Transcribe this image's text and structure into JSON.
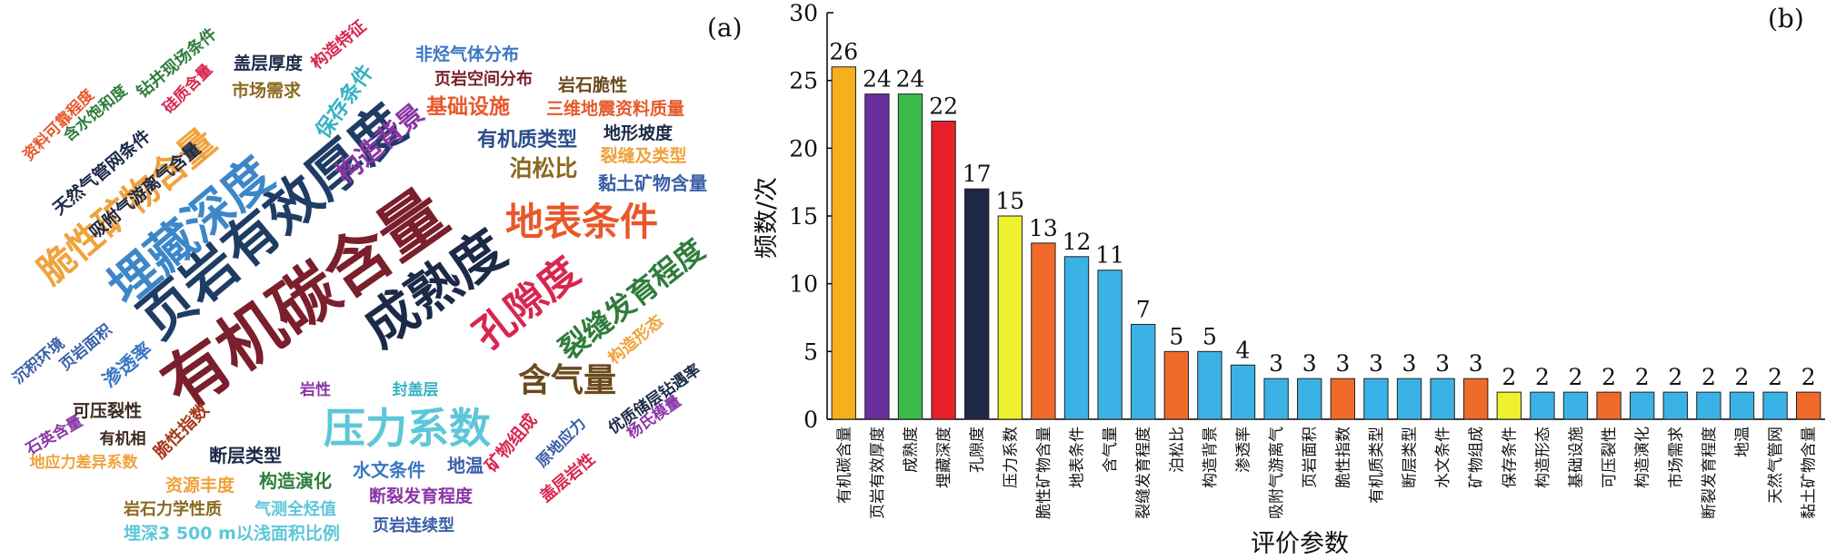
{
  "panels": {
    "a": "(a)",
    "b": "(b)"
  },
  "word_cloud": [
    {
      "text": "有机碳含量",
      "color": "#7a1f2b"
    },
    {
      "text": "页岩有效厚度",
      "color": "#1e3c64"
    },
    {
      "text": "埋藏深度",
      "color": "#3d87c9"
    },
    {
      "text": "成熟度",
      "color": "#1c2a48"
    },
    {
      "text": "孔隙度",
      "color": "#d8264f"
    },
    {
      "text": "脆性矿物含量",
      "color": "#f0a23b"
    },
    {
      "text": "压力系数",
      "color": "#5cc7d8"
    },
    {
      "text": "地表条件",
      "color": "#e8582a"
    },
    {
      "text": "裂缝发育程度",
      "color": "#2f7d3c"
    },
    {
      "text": "含气量",
      "color": "#6b4a1e"
    },
    {
      "text": "构造背景",
      "color": "#8a35a6"
    },
    {
      "text": "保存条件",
      "color": "#36b3c2"
    },
    {
      "text": "基础设施",
      "color": "#e8582a"
    },
    {
      "text": "三维地震资料质量",
      "color": "#e8582a"
    },
    {
      "text": "有机质类型",
      "color": "#2c4e8a"
    },
    {
      "text": "泊松比",
      "color": "#8a6a1e"
    },
    {
      "text": "裂缝及类型",
      "color": "#f0a23b"
    },
    {
      "text": "黏土矿物含量",
      "color": "#3a5fa8"
    },
    {
      "text": "地形坡度",
      "color": "#1c2a48"
    },
    {
      "text": "岩石脆性",
      "color": "#6b4a1e"
    },
    {
      "text": "页岩空间分布",
      "color": "#7a1f2b"
    },
    {
      "text": "非烃气体分布",
      "color": "#3a78c2"
    },
    {
      "text": "盖层厚度",
      "color": "#1c2a48"
    },
    {
      "text": "构造特征",
      "color": "#d8264f"
    },
    {
      "text": "市场需求",
      "color": "#8a6a1e"
    },
    {
      "text": "钻井现场条件",
      "color": "#2f7d3c"
    },
    {
      "text": "硅质含量",
      "color": "#d8264f"
    },
    {
      "text": "含水饱和度",
      "color": "#2f7d3c"
    },
    {
      "text": "资料可靠程度",
      "color": "#e8582a"
    },
    {
      "text": "天然气管网条件",
      "color": "#1c2a48"
    },
    {
      "text": "吸附气游离气含量",
      "color": "#1c2a48"
    },
    {
      "text": "沉积环境",
      "color": "#3a5fa8"
    },
    {
      "text": "页岩面积",
      "color": "#3a5fa8"
    },
    {
      "text": "渗透率",
      "color": "#3a78c2"
    },
    {
      "text": "石英含量",
      "color": "#8a35a6"
    },
    {
      "text": "可压裂性",
      "color": "#3d2a1e"
    },
    {
      "text": "脆性指数",
      "color": "#a83a1e"
    },
    {
      "text": "岩性",
      "color": "#8a35a6"
    },
    {
      "text": "封盖层",
      "color": "#36b3c2"
    },
    {
      "text": "有机相",
      "color": "#3d2a1e"
    },
    {
      "text": "地应力差异系数",
      "color": "#f0a23b"
    },
    {
      "text": "断层类型",
      "color": "#1c2a48"
    },
    {
      "text": "资源丰度",
      "color": "#f0a23b"
    },
    {
      "text": "构造演化",
      "color": "#2f7d3c"
    },
    {
      "text": "矿物组成",
      "color": "#d8264f"
    },
    {
      "text": "原地应力",
      "color": "#3a5fa8"
    },
    {
      "text": "优质储层钻遇率",
      "color": "#1c2a48"
    },
    {
      "text": "杨氏模量",
      "color": "#8a35a6"
    },
    {
      "text": "水文条件",
      "color": "#3a78c2"
    },
    {
      "text": "地温",
      "color": "#3a5fa8"
    },
    {
      "text": "盖层岩性",
      "color": "#d8264f"
    },
    {
      "text": "构造形态",
      "color": "#f0a23b"
    },
    {
      "text": "岩石力学性质",
      "color": "#8a6a1e"
    },
    {
      "text": "气测全烃值",
      "color": "#5cc7d8"
    },
    {
      "text": "断裂发育程度",
      "color": "#8a35a6"
    },
    {
      "text": "埋深3 500 m以浅面积比例",
      "color": "#5cc7d8"
    },
    {
      "text": "页岩连续型",
      "color": "#3a5fa8"
    }
  ],
  "chart_data": {
    "type": "bar",
    "xlabel": "评价参数",
    "ylabel": "频数/次",
    "ylim": [
      0,
      30
    ],
    "yticks": [
      0,
      5,
      10,
      15,
      20,
      25,
      30
    ],
    "grid": false,
    "categories": [
      "有机碳含量",
      "页岩有效厚度",
      "成熟度",
      "埋藏深度",
      "孔隙度",
      "压力系数",
      "脆性矿物含量",
      "地表条件",
      "含气量",
      "裂缝发育程度",
      "泊松比",
      "构造背景",
      "渗透率",
      "吸附气游离气",
      "页岩面积",
      "脆性指数",
      "有机质类型",
      "断层类型",
      "水文条件",
      "矿物组成",
      "保存条件",
      "构造形态",
      "基础设施",
      "可压裂性",
      "构造演化",
      "市场需求",
      "断裂发育程度",
      "地温",
      "天然气管网",
      "黏土矿物含量"
    ],
    "values": [
      26,
      24,
      24,
      22,
      17,
      15,
      13,
      12,
      11,
      7,
      5,
      5,
      4,
      3,
      3,
      3,
      3,
      3,
      3,
      3,
      2,
      2,
      2,
      2,
      2,
      2,
      2,
      2,
      2,
      2
    ],
    "colors": [
      "#f5b01c",
      "#6a2e9c",
      "#3dbb48",
      "#e8202a",
      "#1e2844",
      "#eef030",
      "#f06a2a",
      "#3bb2e6",
      "#3bb2e6",
      "#3bb2e6",
      "#f06a2a",
      "#3bb2e6",
      "#3bb2e6",
      "#3bb2e6",
      "#3bb2e6",
      "#f06a2a",
      "#3bb2e6",
      "#3bb2e6",
      "#3bb2e6",
      "#f06a2a",
      "#eef030",
      "#3bb2e6",
      "#3bb2e6",
      "#f06a2a",
      "#3bb2e6",
      "#3bb2e6",
      "#3bb2e6",
      "#3bb2e6",
      "#3bb2e6",
      "#f06a2a"
    ]
  }
}
